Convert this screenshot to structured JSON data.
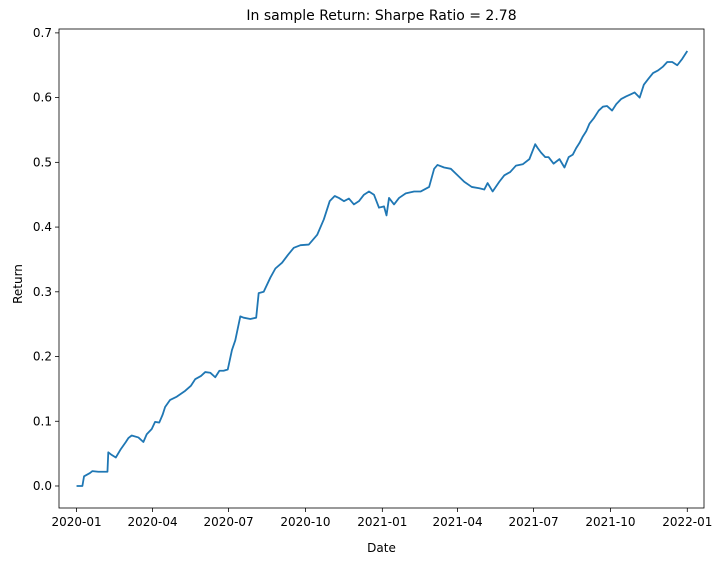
{
  "chart_data": {
    "type": "line",
    "title": "In sample Return: Sharpe Ratio = 2.78",
    "xlabel": "Date",
    "ylabel": "Return",
    "xlim": [
      "2019-12-11",
      "2022-01-21"
    ],
    "ylim": [
      -0.034,
      0.706
    ],
    "grid": false,
    "legend": "none",
    "line_color": "#1f77b4",
    "x_ticks": [
      "2020-01",
      "2020-04",
      "2020-07",
      "2020-10",
      "2021-01",
      "2021-04",
      "2021-07",
      "2021-10",
      "2022-01"
    ],
    "y_ticks": [
      0.0,
      0.1,
      0.2,
      0.3,
      0.4,
      0.5,
      0.6,
      0.7
    ],
    "y_tick_labels": [
      "0.0",
      "0.1",
      "0.2",
      "0.3",
      "0.4",
      "0.5",
      "0.6",
      "0.7"
    ],
    "series": [
      {
        "x": [
          "2020-01-01",
          "2020-01-08",
          "2020-01-10",
          "2020-01-17",
          "2020-01-20",
          "2020-01-27",
          "2020-02-03",
          "2020-02-07",
          "2020-02-08",
          "2020-02-12",
          "2020-02-17",
          "2020-02-23",
          "2020-02-29",
          "2020-03-03",
          "2020-03-07",
          "2020-03-15",
          "2020-03-21",
          "2020-03-25",
          "2020-03-31",
          "2020-04-04",
          "2020-04-09",
          "2020-04-13",
          "2020-04-16",
          "2020-04-22",
          "2020-04-30",
          "2020-05-10",
          "2020-05-17",
          "2020-05-22",
          "2020-05-29",
          "2020-06-03",
          "2020-06-09",
          "2020-06-15",
          "2020-06-20",
          "2020-06-25",
          "2020-06-30",
          "2020-07-05",
          "2020-07-09",
          "2020-07-15",
          "2020-07-19",
          "2020-07-27",
          "2020-08-03",
          "2020-08-06",
          "2020-08-12",
          "2020-08-20",
          "2020-08-26",
          "2020-09-03",
          "2020-09-10",
          "2020-09-17",
          "2020-09-25",
          "2020-10-05",
          "2020-10-15",
          "2020-10-23",
          "2020-10-30",
          "2020-11-05",
          "2020-11-10",
          "2020-11-16",
          "2020-11-22",
          "2020-11-28",
          "2020-12-04",
          "2020-12-10",
          "2020-12-16",
          "2020-12-22",
          "2020-12-28",
          "2021-01-03",
          "2021-01-06",
          "2021-01-09",
          "2021-01-15",
          "2021-01-21",
          "2021-01-29",
          "2021-02-08",
          "2021-02-16",
          "2021-02-26",
          "2021-03-04",
          "2021-03-08",
          "2021-03-16",
          "2021-03-24",
          "2021-04-01",
          "2021-04-09",
          "2021-04-18",
          "2021-04-27",
          "2021-05-03",
          "2021-05-07",
          "2021-05-13",
          "2021-05-21",
          "2021-05-27",
          "2021-06-03",
          "2021-06-10",
          "2021-06-18",
          "2021-06-26",
          "2021-07-03",
          "2021-07-06",
          "2021-07-10",
          "2021-07-15",
          "2021-07-19",
          "2021-07-25",
          "2021-08-01",
          "2021-08-07",
          "2021-08-12",
          "2021-08-17",
          "2021-08-21",
          "2021-08-25",
          "2021-08-29",
          "2021-09-02",
          "2021-09-06",
          "2021-09-11",
          "2021-09-17",
          "2021-09-22",
          "2021-09-27",
          "2021-10-03",
          "2021-10-08",
          "2021-10-14",
          "2021-10-20",
          "2021-10-25",
          "2021-10-30",
          "2021-11-05",
          "2021-11-10",
          "2021-11-16",
          "2021-11-21",
          "2021-11-27",
          "2021-12-03",
          "2021-12-08",
          "2021-12-14",
          "2021-12-20",
          "2021-12-26",
          "2022-01-01"
        ],
        "y": [
          0.0,
          0.0,
          0.015,
          0.02,
          0.023,
          0.022,
          0.022,
          0.022,
          0.052,
          0.048,
          0.044,
          0.057,
          0.068,
          0.074,
          0.078,
          0.075,
          0.068,
          0.08,
          0.088,
          0.099,
          0.098,
          0.11,
          0.122,
          0.133,
          0.138,
          0.147,
          0.155,
          0.165,
          0.17,
          0.176,
          0.175,
          0.168,
          0.178,
          0.178,
          0.18,
          0.21,
          0.225,
          0.262,
          0.26,
          0.258,
          0.26,
          0.298,
          0.3,
          0.322,
          0.336,
          0.345,
          0.357,
          0.368,
          0.372,
          0.373,
          0.388,
          0.412,
          0.44,
          0.448,
          0.445,
          0.44,
          0.444,
          0.435,
          0.44,
          0.45,
          0.455,
          0.45,
          0.43,
          0.432,
          0.418,
          0.445,
          0.435,
          0.445,
          0.452,
          0.455,
          0.455,
          0.462,
          0.49,
          0.496,
          0.492,
          0.49,
          0.48,
          0.47,
          0.462,
          0.46,
          0.458,
          0.468,
          0.455,
          0.47,
          0.48,
          0.485,
          0.495,
          0.497,
          0.505,
          0.528,
          0.522,
          0.515,
          0.508,
          0.508,
          0.498,
          0.505,
          0.492,
          0.508,
          0.512,
          0.522,
          0.53,
          0.54,
          0.548,
          0.56,
          0.568,
          0.58,
          0.586,
          0.587,
          0.58,
          0.59,
          0.598,
          0.602,
          0.605,
          0.608,
          0.6,
          0.62,
          0.63,
          0.638,
          0.642,
          0.648,
          0.655,
          0.655,
          0.65,
          0.66,
          0.672
        ]
      }
    ]
  }
}
